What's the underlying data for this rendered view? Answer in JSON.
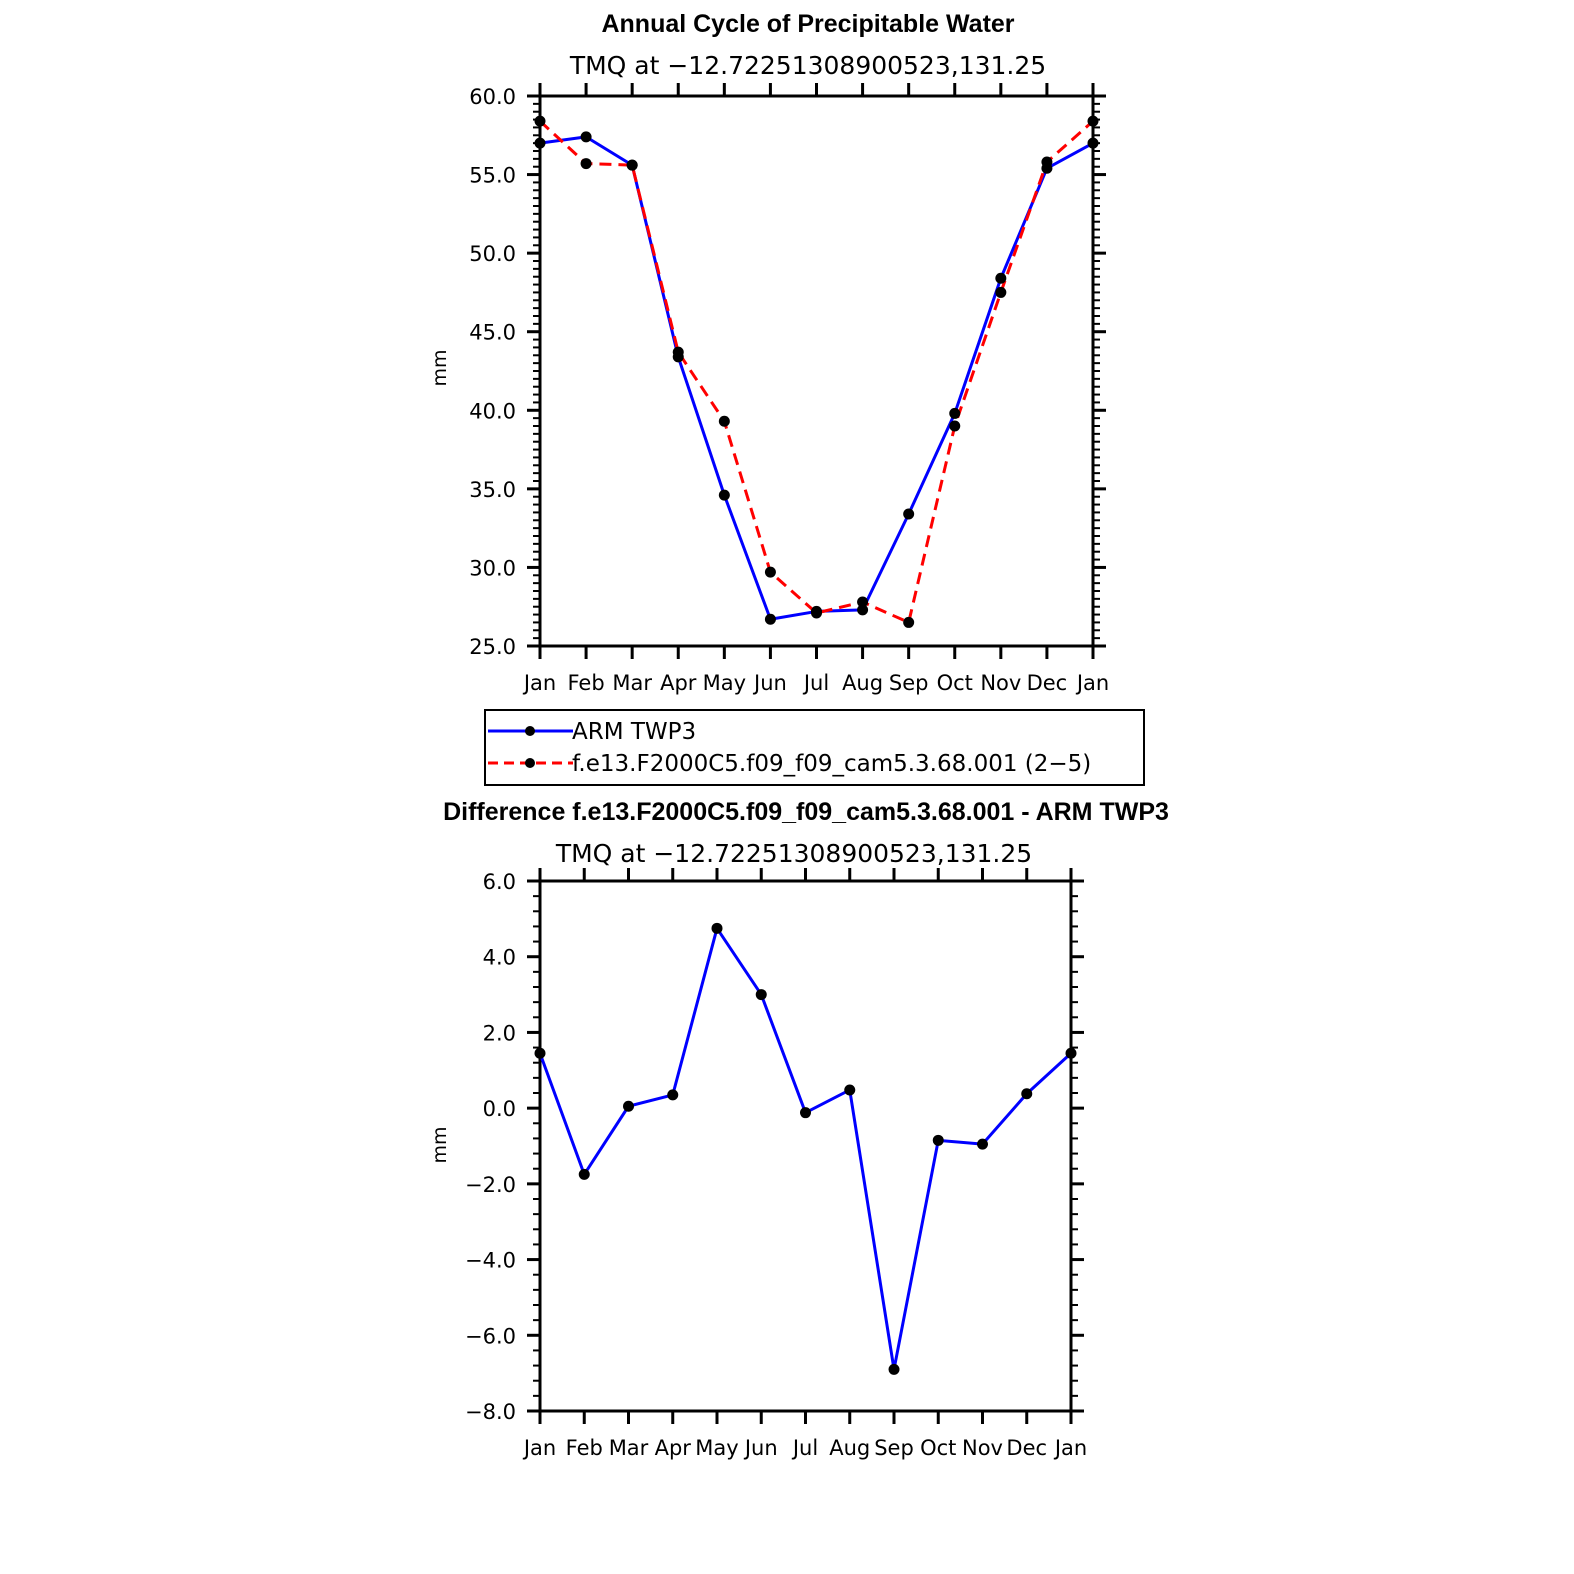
{
  "chart_data": [
    {
      "type": "line",
      "title": "Annual Cycle of Precipitable Water",
      "subtitle": "TMQ at −12.72251308900523,131.25",
      "ylabel": "mm",
      "xlabel": "",
      "categories": [
        "Jan",
        "Feb",
        "Mar",
        "Apr",
        "May",
        "Jun",
        "Jul",
        "Aug",
        "Sep",
        "Oct",
        "Nov",
        "Dec",
        "Jan"
      ],
      "ylim": [
        25.0,
        60.0
      ],
      "yticks": [
        "25.0",
        "30.0",
        "35.0",
        "40.0",
        "45.0",
        "50.0",
        "55.0",
        "60.0"
      ],
      "series": [
        {
          "name": "ARM TWP3",
          "color": "#0000ff",
          "dash": "solid",
          "values": [
            57.0,
            57.4,
            55.6,
            43.4,
            34.6,
            26.7,
            27.2,
            27.3,
            33.4,
            39.8,
            48.4,
            55.4,
            57.0
          ]
        },
        {
          "name": "f.e13.F2000C5.f09_f09_cam5.3.68.001 (2−5)",
          "color": "#ff0000",
          "dash": "dashed",
          "values": [
            58.4,
            55.7,
            55.6,
            43.7,
            39.3,
            29.7,
            27.1,
            27.8,
            26.5,
            39.0,
            47.5,
            55.8,
            58.4
          ]
        }
      ],
      "legend_position": "below"
    },
    {
      "type": "line",
      "title": "Difference f.e13.F2000C5.f09_f09_cam5.3.68.001 - ARM TWP3",
      "subtitle": "TMQ at −12.72251308900523,131.25",
      "ylabel": "mm",
      "xlabel": "",
      "categories": [
        "Jan",
        "Feb",
        "Mar",
        "Apr",
        "May",
        "Jun",
        "Jul",
        "Aug",
        "Sep",
        "Oct",
        "Nov",
        "Dec",
        "Jan"
      ],
      "ylim": [
        -8.0,
        6.0
      ],
      "yticks": [
        "−8.0",
        "−6.0",
        "−4.0",
        "−2.0",
        "0.0",
        "2.0",
        "4.0",
        "6.0"
      ],
      "series": [
        {
          "name": "Difference",
          "color": "#0000ff",
          "dash": "solid",
          "values": [
            1.45,
            -1.75,
            0.05,
            0.35,
            4.75,
            3.0,
            -0.12,
            0.48,
            -6.9,
            -0.85,
            -0.95,
            0.38,
            1.45
          ]
        }
      ]
    }
  ]
}
